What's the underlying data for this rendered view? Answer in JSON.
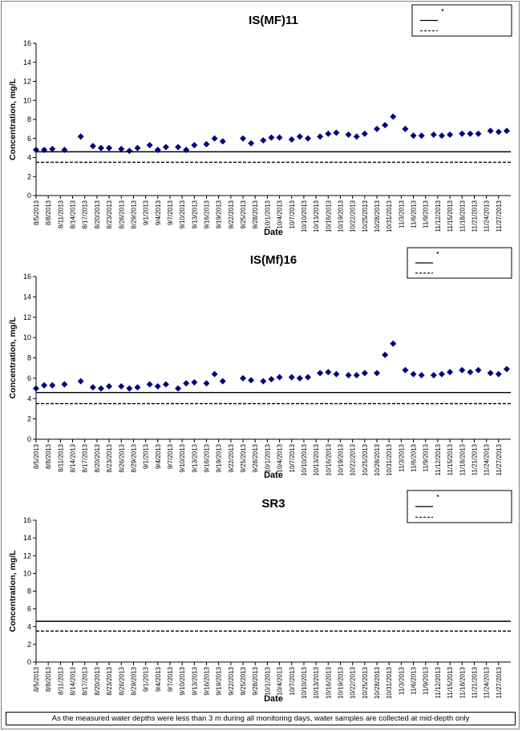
{
  "chart_data": [
    {
      "type": "scatter",
      "title": "IS(MF)11",
      "xlabel": "Date",
      "ylabel": "Concentration, mg/L",
      "ylim": [
        0,
        16
      ],
      "yticks": [
        0,
        2,
        4,
        6,
        8,
        10,
        12,
        14,
        16
      ],
      "xlim": [
        "8/5/2013",
        "11/30/2013"
      ],
      "xticks": [
        "8/5/2013",
        "8/8/2013",
        "8/11/2013",
        "8/14/2013",
        "8/17/2013",
        "8/20/2013",
        "8/23/2013",
        "8/26/2013",
        "8/29/2013",
        "9/1/2013",
        "9/4/2013",
        "9/7/2013",
        "9/10/2013",
        "9/13/2013",
        "9/16/2013",
        "9/19/2013",
        "9/22/2013",
        "9/25/2013",
        "9/28/2013",
        "10/1/2013",
        "10/4/2013",
        "10/7/2013",
        "10/10/2013",
        "10/13/2013",
        "10/16/2013",
        "10/19/2013",
        "10/22/2013",
        "10/25/2013",
        "10/28/2013",
        "10/31/2013",
        "11/3/2013",
        "11/6/2013",
        "11/9/2013",
        "11/12/2013",
        "11/15/2013",
        "11/18/2013",
        "11/21/2013",
        "11/24/2013",
        "11/27/2013"
      ],
      "grid": false,
      "legend_position": "top-right",
      "series": [
        {
          "kind": "marker",
          "color": "#000080",
          "x": [
            "8/5/2013",
            "8/7/2013",
            "8/9/2013",
            "8/12/2013",
            "8/16/2013",
            "8/19/2013",
            "8/21/2013",
            "8/23/2013",
            "8/26/2013",
            "8/28/2013",
            "8/30/2013",
            "9/2/2013",
            "9/4/2013",
            "9/6/2013",
            "9/9/2013",
            "9/11/2013",
            "9/13/2013",
            "9/16/2013",
            "9/18/2013",
            "9/20/2013",
            "9/25/2013",
            "9/27/2013",
            "9/30/2013",
            "10/2/2013",
            "10/4/2013",
            "10/7/2013",
            "10/9/2013",
            "10/11/2013",
            "10/14/2013",
            "10/16/2013",
            "10/18/2013",
            "10/21/2013",
            "10/23/2013",
            "10/25/2013",
            "10/28/2013",
            "10/30/2013",
            "11/1/2013",
            "11/4/2013",
            "11/6/2013",
            "11/8/2013",
            "11/11/2013",
            "11/13/2013",
            "11/15/2013",
            "11/18/2013",
            "11/20/2013",
            "11/22/2013",
            "11/25/2013",
            "11/27/2013",
            "11/29/2013"
          ],
          "y": [
            4.8,
            4.8,
            4.9,
            4.8,
            6.2,
            5.2,
            5.0,
            5.0,
            4.9,
            4.7,
            5.0,
            5.3,
            4.8,
            5.1,
            5.1,
            4.8,
            5.3,
            5.4,
            6.0,
            5.7,
            6.0,
            5.5,
            5.8,
            6.1,
            6.1,
            5.9,
            6.2,
            6.0,
            6.2,
            6.5,
            6.6,
            6.4,
            6.2,
            6.5,
            7.0,
            7.4,
            8.3,
            7.0,
            6.3,
            6.3,
            6.4,
            6.3,
            6.4,
            6.5,
            6.5,
            6.5,
            6.8,
            6.7,
            6.8
          ]
        },
        {
          "kind": "line",
          "style": "solid",
          "value": 4.6
        },
        {
          "kind": "line",
          "style": "dashed",
          "value": 3.5
        }
      ]
    },
    {
      "type": "scatter",
      "title": "IS(Mf)16",
      "xlabel": "Date",
      "ylabel": "Concentration, mg/L",
      "ylim": [
        0,
        16
      ],
      "yticks": [
        0,
        2,
        4,
        6,
        8,
        10,
        12,
        14,
        16
      ],
      "xlim": [
        "8/5/2013",
        "11/30/2013"
      ],
      "xticks": [
        "8/5/2013",
        "8/8/2013",
        "8/11/2013",
        "8/14/2013",
        "8/17/2013",
        "8/20/2013",
        "8/23/2013",
        "8/26/2013",
        "8/29/2013",
        "9/1/2013",
        "9/4/2013",
        "9/7/2013",
        "9/10/2013",
        "9/13/2013",
        "9/16/2013",
        "9/19/2013",
        "9/22/2013",
        "9/25/2013",
        "9/28/2013",
        "10/1/2013",
        "10/4/2013",
        "10/7/2013",
        "10/10/2013",
        "10/13/2013",
        "10/16/2013",
        "10/19/2013",
        "10/22/2013",
        "10/25/2013",
        "10/28/2013",
        "10/31/2013",
        "11/3/2013",
        "11/6/2013",
        "11/9/2013",
        "11/12/2013",
        "11/15/2013",
        "11/18/2013",
        "11/21/2013",
        "11/24/2013",
        "11/27/2013"
      ],
      "grid": false,
      "legend_position": "top-right",
      "series": [
        {
          "kind": "marker",
          "color": "#000080",
          "x": [
            "8/5/2013",
            "8/7/2013",
            "8/9/2013",
            "8/12/2013",
            "8/16/2013",
            "8/19/2013",
            "8/21/2013",
            "8/23/2013",
            "8/26/2013",
            "8/28/2013",
            "8/30/2013",
            "9/2/2013",
            "9/4/2013",
            "9/6/2013",
            "9/9/2013",
            "9/11/2013",
            "9/13/2013",
            "9/16/2013",
            "9/18/2013",
            "9/20/2013",
            "9/25/2013",
            "9/27/2013",
            "9/30/2013",
            "10/2/2013",
            "10/4/2013",
            "10/7/2013",
            "10/9/2013",
            "10/11/2013",
            "10/14/2013",
            "10/16/2013",
            "10/18/2013",
            "10/21/2013",
            "10/23/2013",
            "10/25/2013",
            "10/28/2013",
            "10/30/2013",
            "11/1/2013",
            "11/4/2013",
            "11/6/2013",
            "11/8/2013",
            "11/11/2013",
            "11/13/2013",
            "11/15/2013",
            "11/18/2013",
            "11/20/2013",
            "11/22/2013",
            "11/25/2013",
            "11/27/2013",
            "11/29/2013"
          ],
          "y": [
            5.0,
            5.3,
            5.3,
            5.4,
            5.7,
            5.1,
            5.0,
            5.2,
            5.2,
            5.0,
            5.1,
            5.4,
            5.2,
            5.4,
            5.0,
            5.5,
            5.6,
            5.5,
            6.4,
            5.7,
            6.0,
            5.8,
            5.7,
            5.9,
            6.1,
            6.1,
            6.0,
            6.1,
            6.5,
            6.6,
            6.4,
            6.3,
            6.3,
            6.5,
            6.5,
            8.3,
            9.4,
            6.8,
            6.4,
            6.3,
            6.3,
            6.4,
            6.6,
            6.8,
            6.6,
            6.8,
            6.5,
            6.4,
            6.9
          ]
        },
        {
          "kind": "line",
          "style": "solid",
          "value": 4.6
        },
        {
          "kind": "line",
          "style": "dashed",
          "value": 3.5
        }
      ]
    },
    {
      "type": "scatter",
      "title": "SR3",
      "xlabel": "Date",
      "ylabel": "Concentration, mg/L",
      "ylim": [
        0,
        16
      ],
      "yticks": [
        0,
        2,
        4,
        6,
        8,
        10,
        12,
        14,
        16
      ],
      "xlim": [
        "8/5/2013",
        "11/30/2013"
      ],
      "xticks": [
        "8/5/2013",
        "8/8/2013",
        "8/11/2013",
        "8/14/2013",
        "8/17/2013",
        "8/20/2013",
        "8/23/2013",
        "8/26/2013",
        "8/29/2013",
        "9/1/2013",
        "9/4/2013",
        "9/7/2013",
        "9/10/2013",
        "9/13/2013",
        "9/16/2013",
        "9/19/2013",
        "9/22/2013",
        "9/25/2013",
        "9/28/2013",
        "10/1/2013",
        "10/4/2013",
        "10/7/2013",
        "10/10/2013",
        "10/13/2013",
        "10/16/2013",
        "10/19/2013",
        "10/22/2013",
        "10/25/2013",
        "10/28/2013",
        "10/31/2013",
        "11/3/2013",
        "11/6/2013",
        "11/9/2013",
        "11/12/2013",
        "11/15/2013",
        "11/18/2013",
        "11/21/2013",
        "11/24/2013",
        "11/27/2013"
      ],
      "grid": false,
      "legend_position": "top-right",
      "series": [
        {
          "kind": "marker",
          "color": "#000080",
          "x": [],
          "y": []
        },
        {
          "kind": "line",
          "style": "solid",
          "value": 4.6
        },
        {
          "kind": "line",
          "style": "dashed",
          "value": 3.5
        }
      ]
    }
  ],
  "footnote": "As the measured water depths were less than 3 m during all monitoring days, water samples are collected  at mid-depth only"
}
